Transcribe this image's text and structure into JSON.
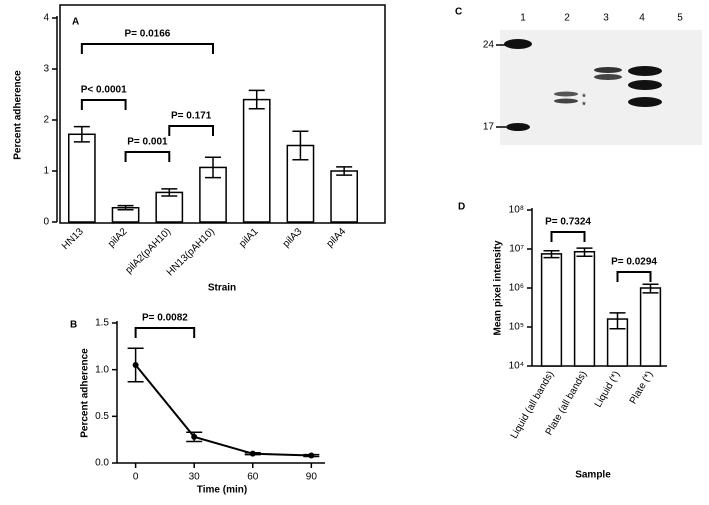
{
  "chart_data": [
    {
      "type": "bar",
      "label": "A",
      "ylabel": "Percent adherence",
      "xlabel": "Strain",
      "categories": [
        "HN13",
        "pilA2",
        "pilA2(pAH10)",
        "HN13(pAH10)",
        "pilA1",
        "pilA3",
        "pilA4"
      ],
      "values": [
        1.72,
        0.28,
        0.58,
        1.07,
        2.4,
        1.5,
        1.0
      ],
      "errors": [
        0.15,
        0.04,
        0.07,
        0.2,
        0.18,
        0.28,
        0.08
      ],
      "color": "#ffffff",
      "ylim": [
        0,
        4
      ],
      "yticks": [
        0,
        1,
        2,
        3,
        4
      ],
      "annotations": [
        "P= 0.0166",
        "P< 0.0001",
        "P= 0.001",
        "P= 0.171"
      ]
    },
    {
      "type": "line",
      "label": "B",
      "ylabel": "Percent adherence",
      "xlabel": "Time (min)",
      "x": [
        0,
        30,
        60,
        90
      ],
      "values": [
        1.05,
        0.28,
        0.1,
        0.08
      ],
      "errors": [
        0.18,
        0.05,
        0.01,
        0.01
      ],
      "color": "#000000",
      "xlim": [
        -8,
        97
      ],
      "xticks": [
        0,
        30,
        60,
        90
      ],
      "ylim": [
        0,
        1.5
      ],
      "yticks": [
        {
          "value": 0,
          "label": "0.0"
        },
        {
          "value": 0.5,
          "label": "0.5"
        },
        {
          "value": 1,
          "label": "1.0"
        },
        {
          "value": 1.5,
          "label": "1.5"
        }
      ],
      "annotations": [
        "P= 0.0082"
      ]
    },
    {
      "type": "blot",
      "label": "C",
      "lanes": [
        "1",
        "2",
        "3",
        "4",
        "5"
      ],
      "markers": [
        24,
        17
      ]
    },
    {
      "type": "bar",
      "label": "D",
      "ylabel": "Mean pixel intensity",
      "xlabel": "Sample",
      "log_scale": true,
      "categories": [
        "Liquid (all bands)",
        "Plate (all bands)",
        "Liquid (*)",
        "Plate (*)"
      ],
      "values": [
        7500000,
        8500000,
        160000,
        1000000
      ],
      "errors": [
        1500000,
        2000000,
        70000,
        250000
      ],
      "color": "#ffffff",
      "ylim": [
        10000,
        100000000
      ],
      "yticks": [
        {
          "value": 10000,
          "label": "10⁴"
        },
        {
          "value": 100000,
          "label": "10⁵"
        },
        {
          "value": 1000000,
          "label": "10⁶"
        },
        {
          "value": 10000000,
          "label": "10⁷"
        },
        {
          "value": 100000000,
          "label": "10⁸"
        }
      ],
      "annotations": [
        "P= 0.7324",
        "P= 0.0294"
      ]
    }
  ]
}
